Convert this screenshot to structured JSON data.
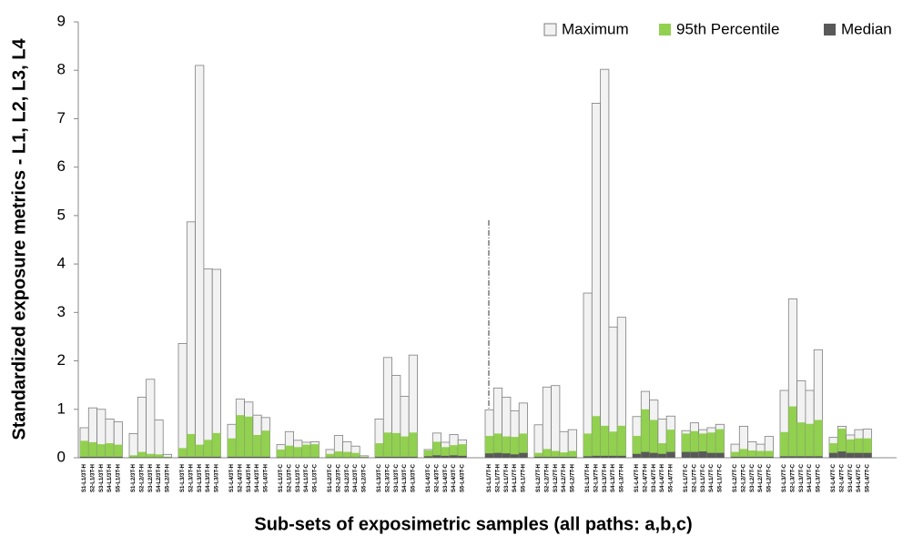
{
  "chart_data": {
    "type": "bar",
    "barmode": "overlay",
    "x_label": "Sub-sets of exposimetric samples (all paths: a,b,c)",
    "y_label": "Standardized exposure metrics - L1, L2, L3, L4",
    "categories": [
      "S1-L1/3T-H",
      "S2-L1/3T-H",
      "S3-L1/3T-H",
      "S4-L1/3T-H",
      "S5-L1/3T-H",
      "S1-L2/3T-H",
      "S2-L2/3T-H",
      "S3-L2/3T-H",
      "S4-L2/3T-H",
      "S5-L2/3T-H",
      "S1-L3/3T-H",
      "S2-L3/3T-H",
      "S3-L3/3T-H",
      "S4-L3/3T-H",
      "S5-L3/3T-H",
      "S1-L4/3T-H",
      "S2-L4/3T-H",
      "S3-L4/3T-H",
      "S4-L4/3T-H",
      "S5-L4/3T-H",
      "S1-L1/3T-C",
      "S2-L1/3T-C",
      "S3-L1/3T-C",
      "S4-L1/3T-C",
      "S5-L1/3T-C",
      "S1-L2/3T-C",
      "S2-L2/3T-C",
      "S3-L2/3T-C",
      "S4-L2/3T-C",
      "S5-L2/3T-C",
      "S1-L3/3T-C",
      "S2-L3/3T-C",
      "S3-L3/3T-C",
      "S4-L3/3T-C",
      "S5-L3/3T-C",
      "S1-L4/3T-C",
      "S2-L4/3T-C",
      "S3-L4/3T-C",
      "S4-L4/3T-C",
      "S5-L4/3T-C",
      "S1-L1/7T-H",
      "S2-L1/7T-H",
      "S3-L1/7T-H",
      "S4-L1/7T-H",
      "S5-L1/7T-H",
      "S1-L2/7T-H",
      "S2-L2/7T-H",
      "S3-L2/7T-H",
      "S4-L2/7T-H",
      "S5-L2/7T-H",
      "S1-L3/7T-H",
      "S2-L3/7T-H",
      "S3-L3/7T-H",
      "S4-L3/7T-H",
      "S5-L3/7T-H",
      "S1-L4/7T-H",
      "S2-L4/7T-H",
      "S3-L4/7T-H",
      "S4-L4/7T-H",
      "S5-L4/7T-H",
      "S1-L1/7T-C",
      "S2-L1/7T-C",
      "S3-L1/7T-C",
      "S4-L1/7T-C",
      "S5-L1/7T-C",
      "S1-L2/7T-C",
      "S2-L2/7T-C",
      "S3-L2/7T-C",
      "S4-L2/7T-C",
      "S5-L2/7T-C",
      "S1-L3/7T-C",
      "S2-L3/7T-C",
      "S3-L3/7T-C",
      "S4-L3/7T-C",
      "S5-L3/7T-C",
      "S1-L4/7T-C",
      "S2-L4/7T-C",
      "S3-L4/7T-C",
      "S4-L4/7T-C",
      "S5-L4/7T-C"
    ],
    "series": [
      {
        "name": "Maximum",
        "color": "#f2f2f2",
        "values": [
          0.62,
          1.03,
          1.0,
          0.8,
          0.74,
          0.5,
          1.25,
          1.62,
          0.78,
          0.07,
          2.36,
          4.87,
          8.1,
          3.9,
          3.89,
          0.69,
          1.21,
          1.15,
          0.88,
          0.83,
          0.27,
          0.54,
          0.36,
          0.32,
          0.33,
          0.17,
          0.46,
          0.33,
          0.24,
          0.04,
          0.8,
          2.07,
          1.7,
          1.27,
          2.12,
          0.17,
          0.51,
          0.32,
          0.48,
          0.37,
          0.99,
          1.44,
          1.25,
          0.97,
          1.13,
          0.68,
          1.46,
          1.49,
          0.54,
          0.58,
          3.4,
          7.32,
          8.02,
          2.7,
          2.9,
          0.85,
          1.37,
          1.19,
          0.8,
          0.86,
          0.56,
          0.72,
          0.58,
          0.62,
          0.69,
          0.28,
          0.65,
          0.33,
          0.28,
          0.44,
          1.39,
          3.28,
          1.59,
          1.39,
          2.23,
          0.42,
          0.65,
          0.47,
          0.58,
          0.59
        ]
      },
      {
        "name": "95th Percentile",
        "color": "#92d050",
        "values": [
          0.35,
          0.32,
          0.28,
          0.3,
          0.27,
          0.05,
          0.12,
          0.08,
          0.07,
          0.02,
          0.2,
          0.49,
          0.27,
          0.37,
          0.51,
          0.4,
          0.88,
          0.85,
          0.47,
          0.56,
          0.17,
          0.25,
          0.22,
          0.27,
          0.28,
          0.08,
          0.13,
          0.12,
          0.1,
          0.02,
          0.3,
          0.52,
          0.51,
          0.44,
          0.52,
          0.15,
          0.33,
          0.22,
          0.26,
          0.28,
          0.45,
          0.5,
          0.44,
          0.43,
          0.5,
          0.1,
          0.18,
          0.14,
          0.11,
          0.14,
          0.5,
          0.86,
          0.66,
          0.54,
          0.66,
          0.45,
          1.0,
          0.78,
          0.3,
          0.58,
          0.5,
          0.55,
          0.5,
          0.52,
          0.59,
          0.12,
          0.18,
          0.15,
          0.14,
          0.14,
          0.53,
          1.06,
          0.73,
          0.7,
          0.78,
          0.3,
          0.6,
          0.38,
          0.4,
          0.4
        ]
      },
      {
        "name": "Median",
        "color": "#595959",
        "values": [
          0.02,
          0.02,
          0.02,
          0.02,
          0.02,
          0.01,
          0.01,
          0.01,
          0.01,
          0.01,
          0.02,
          0.02,
          0.02,
          0.02,
          0.02,
          0.02,
          0.02,
          0.02,
          0.02,
          0.02,
          0.01,
          0.01,
          0.01,
          0.01,
          0.01,
          0.01,
          0.01,
          0.01,
          0.01,
          0.01,
          0.02,
          0.02,
          0.02,
          0.02,
          0.02,
          0.03,
          0.05,
          0.04,
          0.05,
          0.04,
          0.09,
          0.1,
          0.09,
          0.07,
          0.1,
          0.02,
          0.02,
          0.02,
          0.02,
          0.02,
          0.03,
          0.04,
          0.04,
          0.04,
          0.04,
          0.08,
          0.12,
          0.1,
          0.08,
          0.12,
          0.12,
          0.12,
          0.13,
          0.1,
          0.1,
          0.02,
          0.02,
          0.02,
          0.02,
          0.02,
          0.03,
          0.03,
          0.03,
          0.03,
          0.03,
          0.1,
          0.13,
          0.1,
          0.1,
          0.1
        ]
      }
    ],
    "ylim": [
      0,
      9
    ],
    "yticks": [
      0,
      1,
      2,
      3,
      4,
      5,
      6,
      7,
      8,
      9
    ],
    "grid": false,
    "legend": "top-right"
  }
}
